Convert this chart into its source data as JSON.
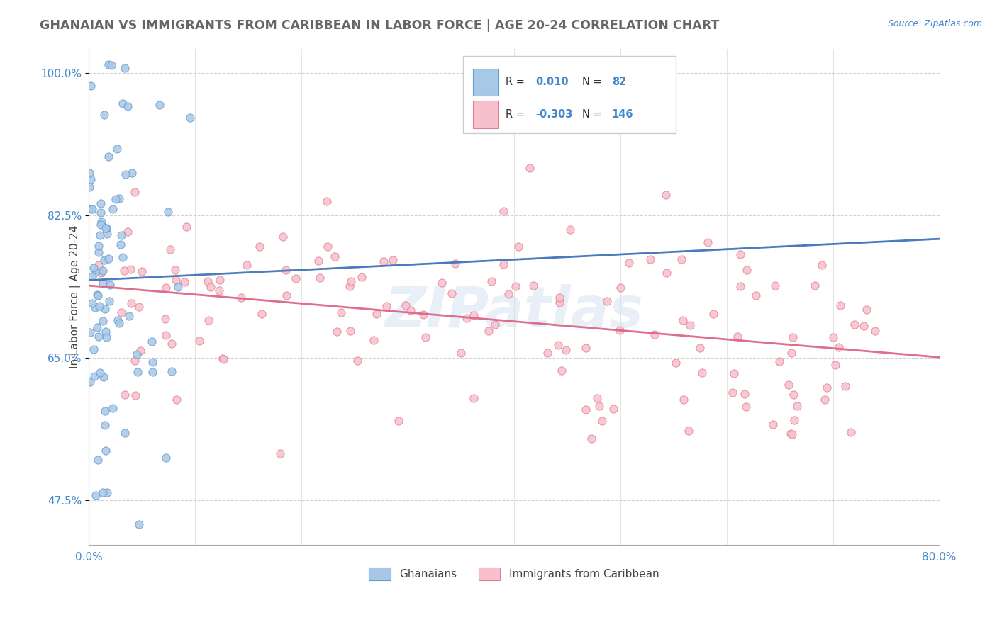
{
  "title": "GHANAIAN VS IMMIGRANTS FROM CARIBBEAN IN LABOR FORCE | AGE 20-24 CORRELATION CHART",
  "source_text": "Source: ZipAtlas.com",
  "ylabel_label": "In Labor Force | Age 20-24",
  "blue_scatter_color": "#a8c8e8",
  "blue_edge_color": "#6699cc",
  "pink_scatter_color": "#f8c0cc",
  "pink_edge_color": "#e08090",
  "trend_blue_color": "#4477bb",
  "trend_pink_color": "#dd6688",
  "legend_text_color": "#4488cc",
  "title_color": "#666666",
  "axis_label_color": "#4488cc",
  "grid_color": "#cccccc",
  "xmin": 0.0,
  "xmax": 80.0,
  "ymin": 42.0,
  "ymax": 103.0,
  "yticks": [
    47.5,
    65.0,
    82.5,
    100.0
  ],
  "watermark": "ZIPatlas"
}
